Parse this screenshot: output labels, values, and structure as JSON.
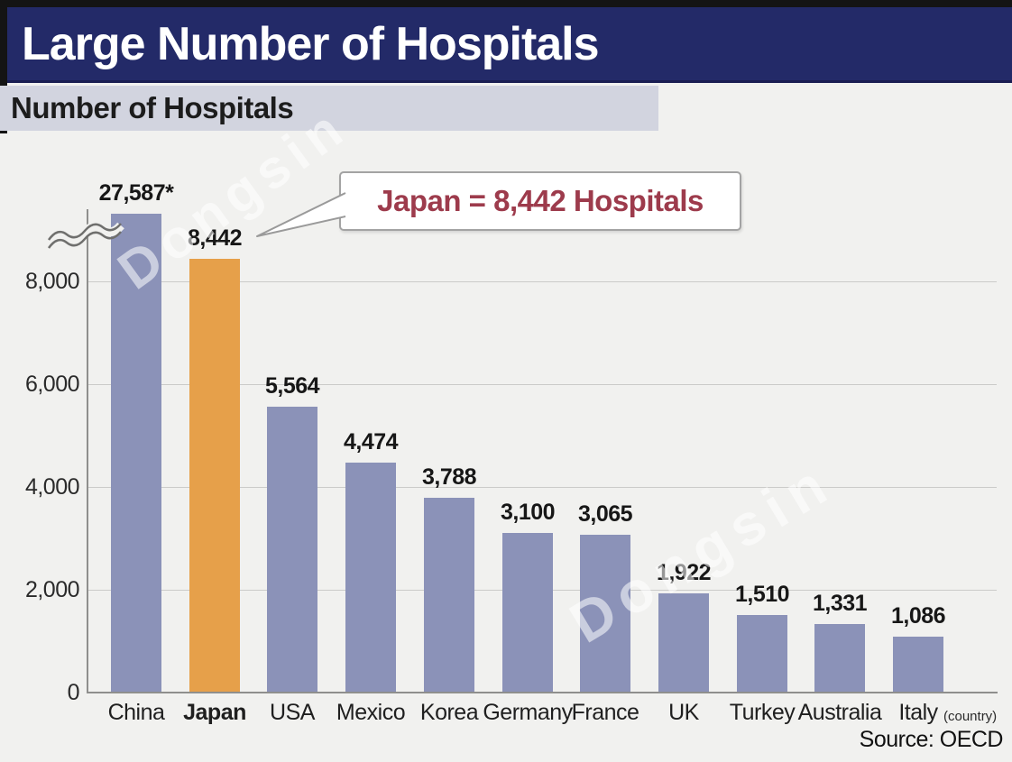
{
  "header": {
    "title": "Large Number of Hospitals"
  },
  "subtitle": {
    "text": "Number of Hospitals"
  },
  "callout": {
    "text": "Japan = 8,442 Hospitals"
  },
  "watermark": {
    "text": "Dongsin"
  },
  "footer": {
    "source": "Source: OECD"
  },
  "chart_data": {
    "type": "bar",
    "title": "Number of Hospitals",
    "categories": [
      "China",
      "Japan",
      "USA",
      "Mexico",
      "Korea",
      "Germany",
      "France",
      "UK",
      "Turkey",
      "Australia",
      "Italy"
    ],
    "values": [
      27587,
      8442,
      5564,
      4474,
      3788,
      3100,
      3065,
      1922,
      1510,
      1331,
      1086
    ],
    "value_labels": [
      "27,587*",
      "8,442",
      "5,564",
      "4,474",
      "3,788",
      "3,100",
      "3,065",
      "1,922",
      "1,510",
      "1,331",
      "1,086"
    ],
    "highlight_category": "Japan",
    "bar_color": "#8b92b8",
    "highlight_color": "#e6a04a",
    "yticks": [
      {
        "value": 0,
        "label": "0"
      },
      {
        "value": 2000,
        "label": "2,000"
      },
      {
        "value": 4000,
        "label": "4,000"
      },
      {
        "value": 6000,
        "label": "6,000"
      },
      {
        "value": 8000,
        "label": "8,000"
      }
    ],
    "ylim": [
      0,
      9400
    ],
    "axis_break": true,
    "grid": true,
    "x_axis_unit_label": "(country)",
    "xlabel": "",
    "ylabel": "",
    "source": "Source: OECD"
  }
}
